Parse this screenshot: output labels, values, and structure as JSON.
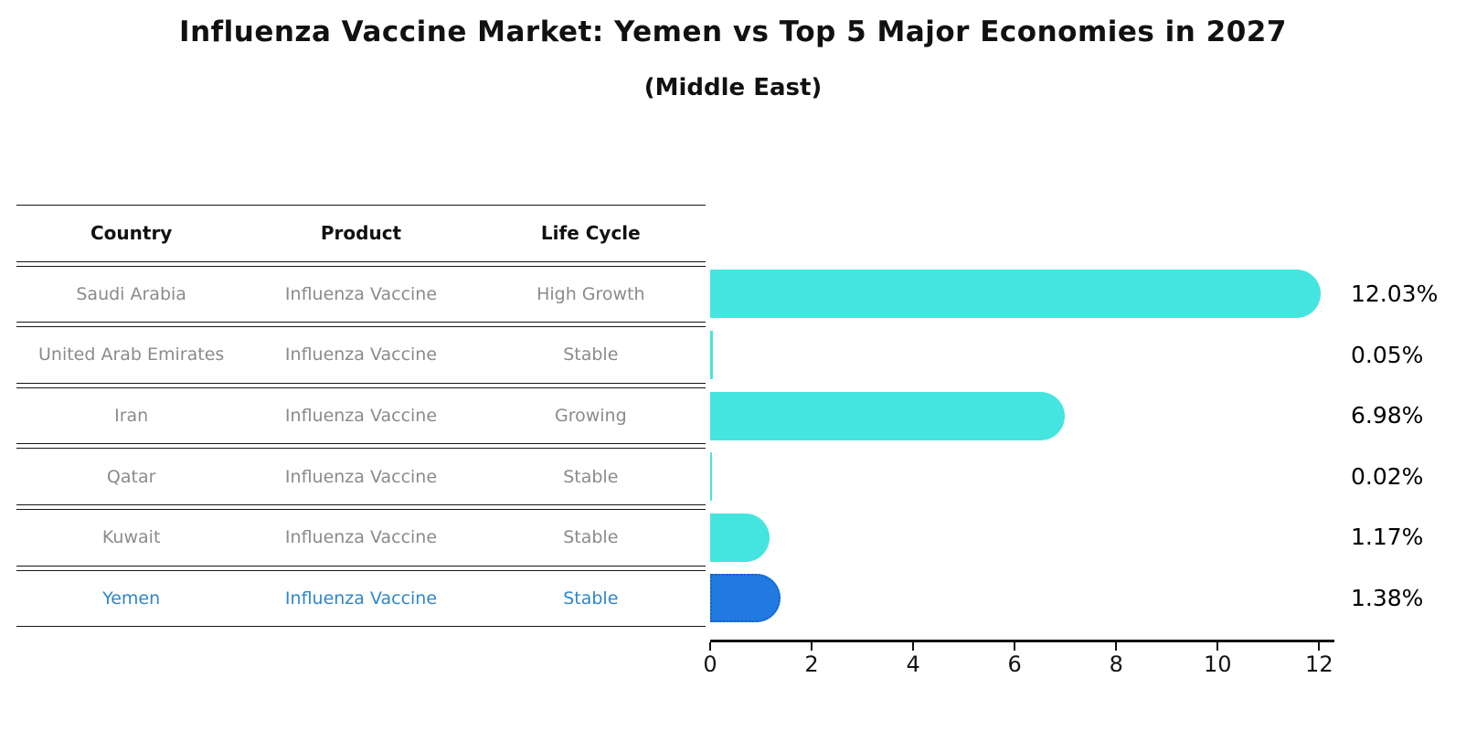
{
  "title": "Influenza Vaccine Market: Yemen vs Top 5 Major Economies in 2027",
  "subtitle": "(Middle East)",
  "table": {
    "headers": [
      "Country",
      "Product",
      "Life Cycle"
    ],
    "rows": [
      {
        "country": "Saudi Arabia",
        "product": "Influenza Vaccine",
        "life_cycle": "High Growth",
        "highlight": false
      },
      {
        "country": "United Arab Emirates",
        "product": "Influenza Vaccine",
        "life_cycle": "Stable",
        "highlight": false
      },
      {
        "country": "Iran",
        "product": "Influenza Vaccine",
        "life_cycle": "Growing",
        "highlight": false
      },
      {
        "country": "Qatar",
        "product": "Influenza Vaccine",
        "life_cycle": "Stable",
        "highlight": false
      },
      {
        "country": "Kuwait",
        "product": "Influenza Vaccine",
        "life_cycle": "Stable",
        "highlight": false
      },
      {
        "country": "Yemen",
        "product": "Influenza Vaccine",
        "life_cycle": "Stable",
        "highlight": true
      }
    ]
  },
  "chart_data": {
    "type": "bar",
    "orientation": "horizontal",
    "title": "Influenza Vaccine Market: Yemen vs Top 5 Major Economies in 2027",
    "subtitle": "(Middle East)",
    "categories": [
      "Saudi Arabia",
      "United Arab Emirates",
      "Iran",
      "Qatar",
      "Kuwait",
      "Yemen"
    ],
    "values": [
      12.03,
      0.05,
      6.98,
      0.02,
      1.17,
      1.38
    ],
    "value_labels": [
      "12.03%",
      "0.05%",
      "6.98%",
      "0.02%",
      "1.17%",
      "1.38%"
    ],
    "x_ticks": [
      0,
      2,
      4,
      6,
      8,
      10,
      12
    ],
    "xlim": [
      0,
      12.3
    ],
    "grid": false,
    "legend": false,
    "bar_color": "#45e5df",
    "highlight_bar_color": "#207ae0",
    "highlight_border_color": "#1563c9",
    "highlight_index": 5,
    "highlight_text_color": "#2e86c8",
    "table_text_color": "#8b8b8b",
    "axis_color": "#111111"
  }
}
